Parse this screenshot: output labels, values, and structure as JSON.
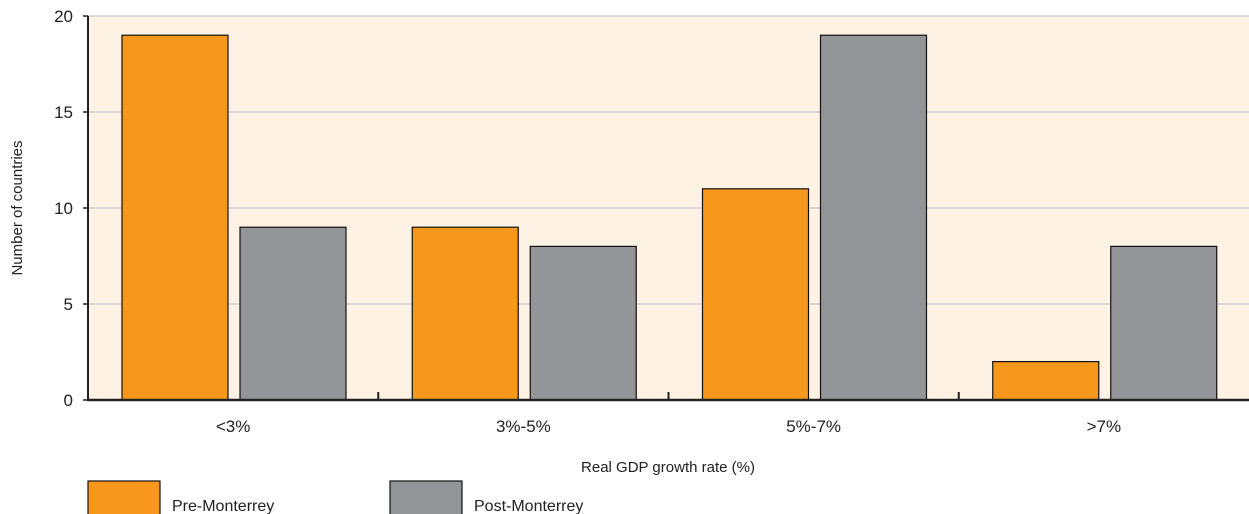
{
  "chart_data": {
    "type": "bar",
    "title": "",
    "xlabel": "Real GDP growth rate (%)",
    "ylabel": "Number of countries",
    "categories": [
      "<3%",
      "3%-5%",
      "5%-7%",
      ">7%"
    ],
    "series": [
      {
        "name": "Pre-Monterrey",
        "values": [
          19,
          9,
          11,
          2
        ],
        "color": "#f7981d"
      },
      {
        "name": "Post-Monterrey",
        "values": [
          9,
          8,
          19,
          8
        ],
        "color": "#939598"
      }
    ],
    "ylim": [
      0,
      20
    ],
    "yticks": [
      0,
      5,
      10,
      15,
      20
    ],
    "grid": true,
    "legend_position": "bottom-left",
    "plot_background": "#fdf2e3",
    "gridline_color": "#d9d9d9",
    "axis_color": "#222222"
  }
}
